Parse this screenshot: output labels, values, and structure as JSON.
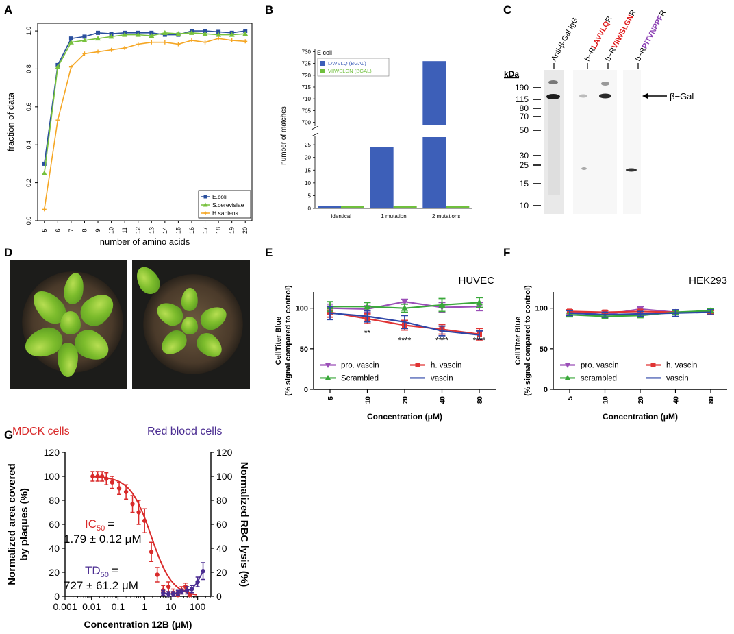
{
  "panel_labels": {
    "A": "A",
    "B": "B",
    "C": "C",
    "D": "D",
    "E": "E",
    "F": "F",
    "G": "G"
  },
  "chart_data": [
    {
      "id": "A",
      "type": "line",
      "title": "",
      "xlabel": "number of amino acids",
      "ylabel": "fraction of data",
      "x": [
        5,
        6,
        7,
        8,
        9,
        10,
        11,
        12,
        13,
        14,
        15,
        16,
        17,
        18,
        19,
        20
      ],
      "xlim": [
        4.5,
        20.5
      ],
      "ylim": [
        0,
        1.04
      ],
      "yticks": [
        "0.0",
        "0.2",
        "0.4",
        "0.6",
        "0.8",
        "1.0"
      ],
      "series": [
        {
          "name": "E.coli",
          "color": "#2a4f9e",
          "marker": "square",
          "values": [
            0.3,
            0.82,
            0.96,
            0.97,
            0.99,
            0.985,
            0.99,
            0.99,
            0.99,
            0.98,
            0.98,
            1.0,
            1.0,
            0.995,
            0.99,
            1.0
          ]
        },
        {
          "name": "S.cerevisiae",
          "color": "#77c13d",
          "marker": "triangle",
          "values": [
            0.25,
            0.81,
            0.94,
            0.95,
            0.96,
            0.97,
            0.98,
            0.98,
            0.975,
            0.99,
            0.985,
            0.99,
            0.985,
            0.98,
            0.98,
            0.985
          ]
        },
        {
          "name": "H.sapiens",
          "color": "#f5a623",
          "marker": "plus",
          "values": [
            0.06,
            0.53,
            0.81,
            0.88,
            0.89,
            0.9,
            0.91,
            0.93,
            0.94,
            0.94,
            0.93,
            0.95,
            0.94,
            0.96,
            0.95,
            0.945
          ]
        }
      ],
      "legend_position": "bottom-right"
    },
    {
      "id": "B",
      "type": "bar",
      "subtitle": "E coli",
      "xlabel": "",
      "ylabel": "number of matches",
      "categories": [
        "identical",
        "1 mutation",
        "2 mutations"
      ],
      "yticks_low": [
        "0",
        "5",
        "10",
        "15",
        "20",
        "25"
      ],
      "yticks_high": [
        "700",
        "705",
        "710",
        "715",
        "720",
        "725",
        "730"
      ],
      "axis_break": [
        28,
        699
      ],
      "series": [
        {
          "name": "LAVVLQ (BGAL)",
          "color": "#3d5fb8",
          "values": [
            1,
            24,
            726
          ]
        },
        {
          "name": "VIIWSLGN (BGAL)",
          "color": "#6fbf3c",
          "values": [
            1,
            1,
            1
          ]
        }
      ],
      "legend_position": "top-left"
    },
    {
      "id": "E",
      "type": "line",
      "title": "HUVEC",
      "xlabel": "Concentration (μM)",
      "ylabel": "CellTiter Blue",
      "ylabel2": "(% signal compared to control)",
      "categories": [
        "5",
        "10",
        "20",
        "40",
        "80"
      ],
      "ylim": [
        0,
        120
      ],
      "yticks": [
        "0",
        "50",
        "100"
      ],
      "series": [
        {
          "name": "pro. vascin",
          "color": "#9b4fb8",
          "marker": "triangle-down",
          "values": [
            100,
            99,
            108,
            101,
            102
          ],
          "err": [
            5,
            4,
            3,
            6,
            5
          ]
        },
        {
          "name": "h. vascin",
          "color": "#e03434",
          "marker": "square",
          "values": [
            95,
            87,
            79,
            74,
            68
          ],
          "err": [
            6,
            6,
            6,
            6,
            7
          ]
        },
        {
          "name": "Scrambled",
          "color": "#3aa83a",
          "marker": "triangle",
          "values": [
            102,
            102,
            100,
            104,
            107
          ],
          "err": [
            6,
            5,
            5,
            8,
            6
          ]
        },
        {
          "name": "vascin",
          "color": "#2e46a8",
          "marker": "none",
          "values": [
            94,
            90,
            83,
            72,
            67
          ],
          "err": [
            8,
            7,
            8,
            6,
            5
          ]
        }
      ],
      "annotations": [
        {
          "at": "10",
          "text": "**"
        },
        {
          "at": "20",
          "text": "****"
        },
        {
          "at": "40",
          "text": "****"
        },
        {
          "at": "80",
          "text": "****"
        }
      ]
    },
    {
      "id": "F",
      "type": "line",
      "title": "HEK293",
      "xlabel": "Concentration (μM)",
      "ylabel": "CellTiter Blue",
      "ylabel2": "(% signal compared to control)",
      "categories": [
        "5",
        "10",
        "20",
        "40",
        "80"
      ],
      "ylim": [
        0,
        120
      ],
      "yticks": [
        "0",
        "50",
        "100"
      ],
      "series": [
        {
          "name": "pro. vascin",
          "color": "#9b4fb8",
          "marker": "triangle-down",
          "values": [
            95,
            92,
            99,
            95,
            96
          ],
          "err": [
            3,
            3,
            3,
            3,
            2
          ]
        },
        {
          "name": "h. vascin",
          "color": "#e03434",
          "marker": "square",
          "values": [
            96,
            95,
            96,
            95,
            95
          ],
          "err": [
            2,
            2,
            2,
            2,
            2
          ]
        },
        {
          "name": "scrambled",
          "color": "#3aa83a",
          "marker": "triangle",
          "values": [
            92,
            90,
            91,
            95,
            97
          ],
          "err": [
            2,
            2,
            2,
            2,
            2
          ]
        },
        {
          "name": "vascin",
          "color": "#2e46a8",
          "marker": "none",
          "values": [
            94,
            92,
            93,
            94,
            95
          ],
          "err": [
            3,
            3,
            3,
            4,
            3
          ]
        }
      ]
    },
    {
      "id": "G",
      "type": "scatter",
      "title_left": "MDCK cells",
      "title_right": "Red blood cells",
      "xlabel": "Concentration 12B (μM)",
      "ylabel": "Normalized area covered",
      "ylabel_line2": "by plaques (%)",
      "ylabel_right": "Normalized RBC lysis (%)",
      "xticks": [
        "0.001",
        "0.01",
        "0.1",
        "1",
        "10",
        "100"
      ],
      "yticks": [
        "0",
        "20",
        "40",
        "60",
        "80",
        "100",
        "120"
      ],
      "ylim": [
        0,
        120
      ],
      "xlim_log10": [
        -3,
        2.5
      ],
      "series": [
        {
          "name": "MDCK",
          "color": "#d92a2a",
          "x": [
            0.011,
            0.017,
            0.025,
            0.036,
            0.06,
            0.11,
            0.2,
            0.35,
            0.6,
            1.0,
            1.8,
            3.0,
            5.0,
            8.0,
            12,
            18,
            25,
            35,
            50
          ],
          "values": [
            100,
            100,
            100,
            98,
            95,
            90,
            87,
            77,
            70,
            63,
            37,
            18,
            5,
            8,
            3,
            1,
            5,
            8,
            1
          ],
          "err": [
            4,
            4,
            4,
            5,
            5,
            5,
            6,
            7,
            10,
            10,
            8,
            6,
            4,
            4,
            3,
            3,
            3,
            3,
            2
          ],
          "fit": {
            "ic50": 1.79,
            "hill": 1.1
          }
        },
        {
          "name": "RBC",
          "color": "#4a2c91",
          "x": [
            5,
            8,
            12,
            18,
            25,
            40,
            60,
            100,
            160
          ],
          "values": [
            3,
            2,
            2,
            3,
            4,
            5,
            6,
            12,
            21
          ],
          "err": [
            2,
            2,
            2,
            2,
            2,
            3,
            3,
            4,
            7
          ]
        }
      ],
      "ic50_label": "IC",
      "ic50_sub": "50",
      "ic50_eq": "=",
      "ic50_value": "1.79 ± 0.12 μM",
      "td50_label": "TD",
      "td50_sub": "50",
      "td50_eq": "=",
      "td50_value": "727 ± 61.2 μM"
    }
  ],
  "blot": {
    "lanes": [
      "Anti-β-Gal IgG",
      "b−RLAVVLQR",
      "b−RVIIWSLGNR",
      "b−RPITVNPPFR"
    ],
    "lane_prefix": "b−R",
    "lane_suffix": "R",
    "lane_peptides": [
      "LAVVLQ",
      "VIIWSLGN",
      "PITVNPPF"
    ],
    "lane_colors": [
      "#e01b1b",
      "#e01b1b",
      "#8b3fb3"
    ],
    "unit": "kDa",
    "markers": [
      "190",
      "115",
      "80",
      "70",
      "50",
      "30",
      "25",
      "15",
      "10"
    ],
    "band_label": "β−Gal"
  }
}
